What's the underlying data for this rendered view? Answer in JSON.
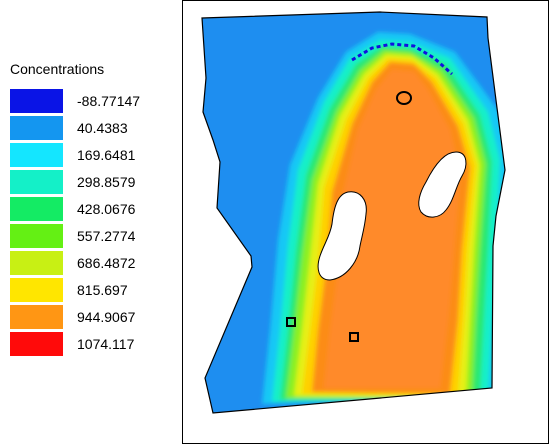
{
  "legend": {
    "title": "Concentrations",
    "items": [
      {
        "label": "-88.77147",
        "color": "#0a14e6"
      },
      {
        "label": "40.4383",
        "color": "#1496f0"
      },
      {
        "label": "169.6481",
        "color": "#14e6ff"
      },
      {
        "label": "298.8579",
        "color": "#14f0c8"
      },
      {
        "label": "428.0676",
        "color": "#14eb64"
      },
      {
        "label": "557.2774",
        "color": "#64f014"
      },
      {
        "label": "686.4872",
        "color": "#c8f014"
      },
      {
        "label": "815.697",
        "color": "#ffe600"
      },
      {
        "label": "944.9067",
        "color": "#ff9614"
      },
      {
        "label": "1074.117",
        "color": "#ff0a0a"
      }
    ]
  }
}
